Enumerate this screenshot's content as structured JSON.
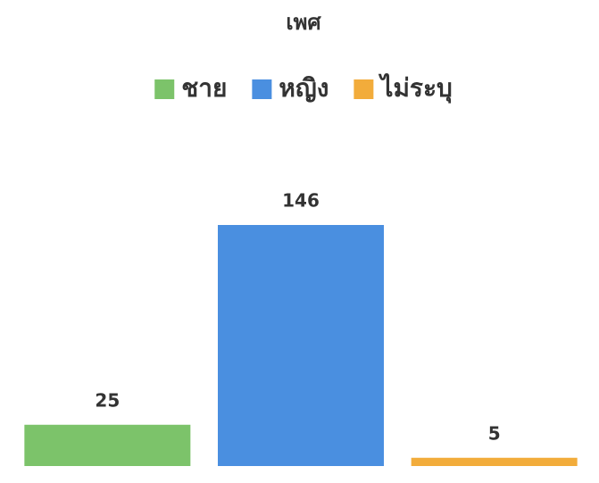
{
  "chart_data": {
    "type": "bar",
    "title": "เพศ",
    "series": [
      {
        "name": "ชาย",
        "color": "#7cc36a",
        "values": [
          25
        ]
      },
      {
        "name": "หญิง",
        "color": "#4a8fe0",
        "values": [
          146
        ]
      },
      {
        "name": "ไม่ระบุ",
        "color": "#f2ac3b",
        "values": [
          5
        ]
      }
    ],
    "legend": "top"
  }
}
